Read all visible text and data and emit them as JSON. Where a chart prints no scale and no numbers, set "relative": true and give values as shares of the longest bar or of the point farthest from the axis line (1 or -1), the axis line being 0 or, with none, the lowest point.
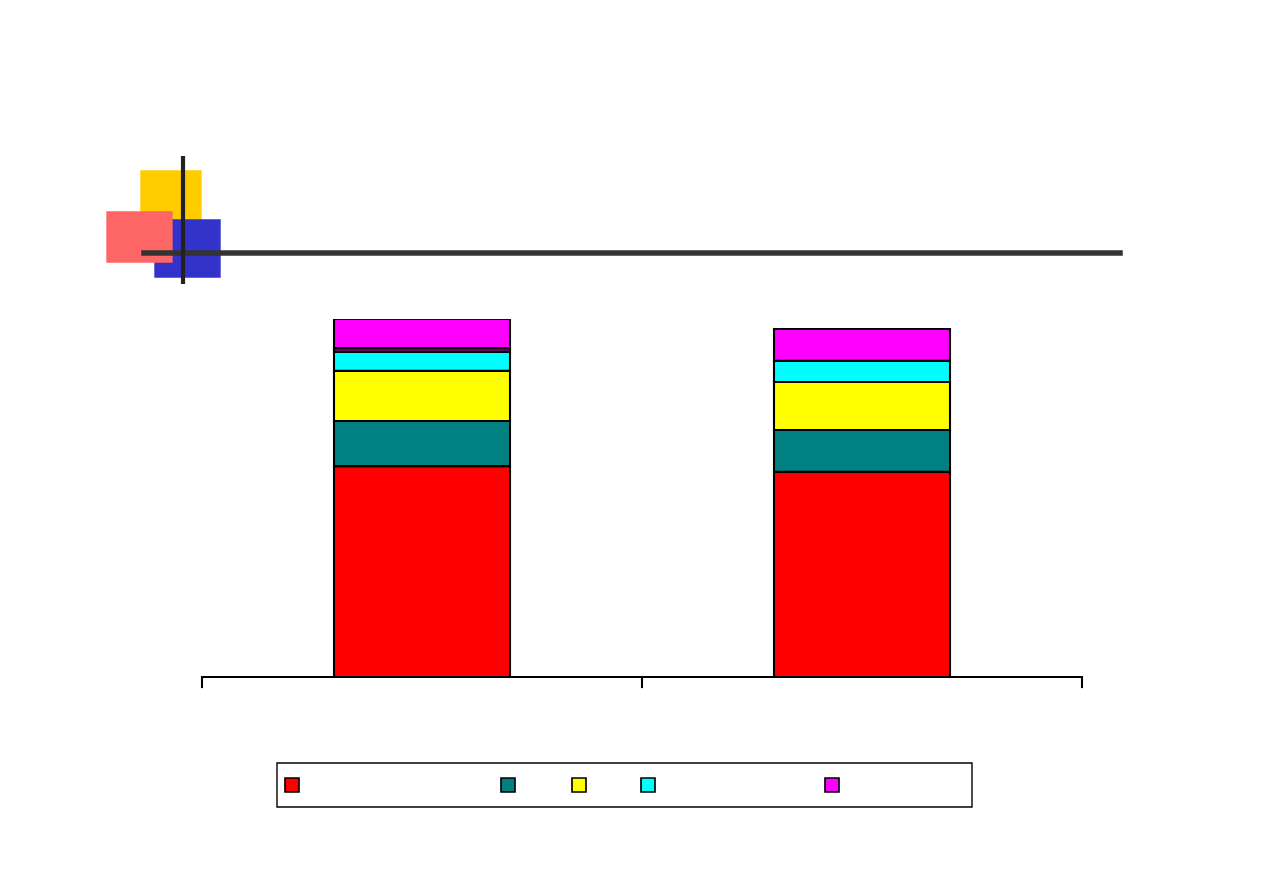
{
  "chart_data": {
    "type": "bar",
    "stacked": true,
    "relative": true,
    "categories": [
      null,
      null
    ],
    "grid": false,
    "series": [
      {
        "color": "#ff0000",
        "values": [
          0.589,
          0.573
        ]
      },
      {
        "color": "#008080",
        "values": [
          0.126,
          0.117
        ]
      },
      {
        "color": "#ffff00",
        "values": [
          0.14,
          0.134
        ]
      },
      {
        "color": "#00ffff",
        "values": [
          0.053,
          0.059
        ]
      },
      {
        "color": "#660066",
        "values": [
          0.011,
          0
        ]
      },
      {
        "color": "#ff00ff",
        "values": [
          0.081,
          0.089
        ]
      }
    ]
  }
}
